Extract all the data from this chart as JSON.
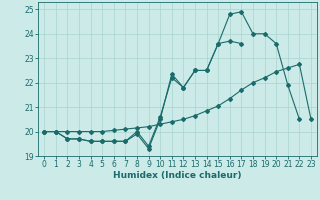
{
  "xlabel": "Humidex (Indice chaleur)",
  "xlim": [
    -0.5,
    23.5
  ],
  "ylim": [
    19,
    25.3
  ],
  "yticks": [
    19,
    20,
    21,
    22,
    23,
    24,
    25
  ],
  "xticks": [
    0,
    1,
    2,
    3,
    4,
    5,
    6,
    7,
    8,
    9,
    10,
    11,
    12,
    13,
    14,
    15,
    16,
    17,
    18,
    19,
    20,
    21,
    22,
    23
  ],
  "bg_color": "#cceae7",
  "line_color": "#1a6b6b",
  "grid_color": "#aad4cf",
  "series1_x": [
    0,
    1,
    2,
    3,
    4,
    5,
    6,
    7,
    8,
    9,
    10,
    11,
    12,
    13,
    14,
    15,
    16,
    17
  ],
  "series1_y": [
    20.0,
    20.0,
    19.7,
    19.7,
    19.6,
    19.6,
    19.6,
    19.6,
    19.9,
    19.3,
    20.5,
    22.35,
    21.8,
    22.5,
    22.5,
    23.6,
    23.7,
    23.6
  ],
  "series2_x": [
    0,
    1,
    2,
    3,
    4,
    5,
    6,
    7,
    8,
    9,
    10,
    11,
    12,
    13,
    14,
    15,
    16,
    17,
    18,
    19,
    20,
    21,
    22
  ],
  "series2_y": [
    20.0,
    20.0,
    19.7,
    19.7,
    19.6,
    19.6,
    19.6,
    19.6,
    20.0,
    19.4,
    20.6,
    22.2,
    21.8,
    22.5,
    22.5,
    23.6,
    24.8,
    24.9,
    24.0,
    24.0,
    23.6,
    21.9,
    20.5
  ],
  "series3_x": [
    0,
    1,
    2,
    3,
    4,
    5,
    6,
    7,
    8,
    9,
    10,
    11,
    12,
    13,
    14,
    15,
    16,
    17,
    18,
    19,
    20,
    21,
    22,
    23
  ],
  "series3_y": [
    20.0,
    20.0,
    20.0,
    20.0,
    20.0,
    20.0,
    20.05,
    20.1,
    20.15,
    20.2,
    20.3,
    20.4,
    20.5,
    20.65,
    20.85,
    21.05,
    21.35,
    21.7,
    22.0,
    22.2,
    22.45,
    22.6,
    22.75,
    20.5
  ]
}
